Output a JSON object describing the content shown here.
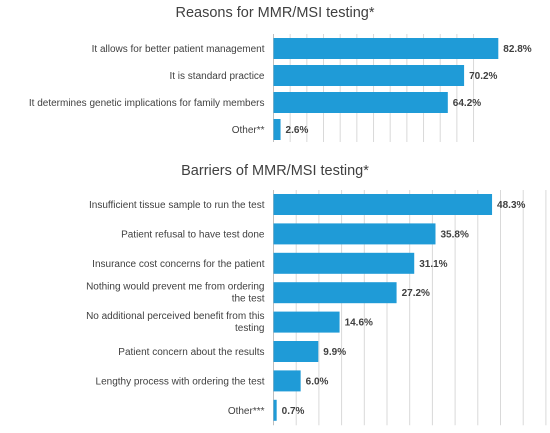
{
  "chart_data": [
    {
      "type": "bar",
      "orientation": "horizontal",
      "title": "Reasons for MMR/MSI testing*",
      "categories": [
        "It allows for better patient management",
        "It is standard practice",
        "It determines genetic implications for family members",
        "Other**"
      ],
      "values": [
        82.8,
        70.2,
        64.2,
        2.6
      ],
      "value_labels": [
        "82.8%",
        "70.2%",
        "64.2%",
        "2.6%"
      ],
      "xlim": [
        0,
        100
      ],
      "grid": true,
      "bar_color": "#1f9bd7"
    },
    {
      "type": "bar",
      "orientation": "horizontal",
      "title": "Barriers of MMR/MSI testing*",
      "categories": [
        [
          "Insufficient tissue sample to run the test"
        ],
        [
          "Patient refusal to have test done"
        ],
        [
          "Insurance cost concerns for the patient"
        ],
        [
          "Nothing would prevent me from ordering",
          "the test"
        ],
        [
          "No additional perceived benefit from this",
          "testing"
        ],
        [
          "Patient concern about the results"
        ],
        [
          "Lengthy process with ordering the test"
        ],
        [
          "Other***"
        ]
      ],
      "values": [
        48.3,
        35.8,
        31.1,
        27.2,
        14.6,
        9.9,
        6.0,
        0.7
      ],
      "value_labels": [
        "48.3%",
        "35.8%",
        "31.1%",
        "27.2%",
        "14.6%",
        "9.9%",
        "6.0%",
        "0.7%"
      ],
      "xlim": [
        0,
        60
      ],
      "grid": true,
      "bar_color": "#1f9bd7"
    }
  ]
}
